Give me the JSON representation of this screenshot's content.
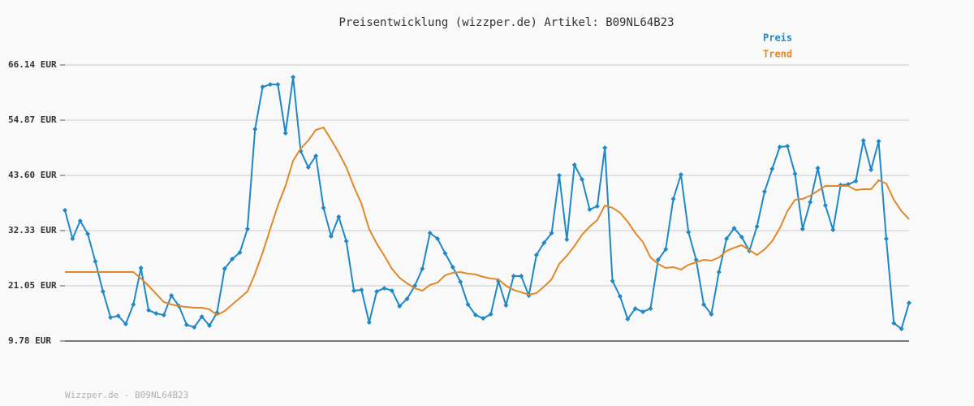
{
  "chart_data": {
    "type": "line",
    "title": "Preisentwicklung (wizzper.de) Artikel: B09NL64B23",
    "footer": "Wizzper.de - B09NL64B23",
    "ylim": [
      9.78,
      66.14
    ],
    "yticks": [
      {
        "value": 9.78,
        "label": "9.78 EUR"
      },
      {
        "value": 21.05,
        "label": "21.05 EUR"
      },
      {
        "value": 32.33,
        "label": "32.33 EUR"
      },
      {
        "value": 43.6,
        "label": "43.60 EUR"
      },
      {
        "value": 54.87,
        "label": "54.87 EUR"
      },
      {
        "value": 66.14,
        "label": "66.14 EUR"
      }
    ],
    "grid": true,
    "legend": "top-right",
    "series": [
      {
        "name": "Preis",
        "color": "#1f88c6",
        "markers": true,
        "values": [
          36.47,
          30.67,
          34.31,
          31.66,
          26.03,
          19.89,
          14.59,
          14.92,
          13.26,
          17.24,
          24.7,
          16.08,
          15.42,
          15.09,
          19.06,
          16.91,
          13.1,
          12.6,
          14.75,
          12.93,
          15.58,
          24.53,
          26.52,
          27.85,
          32.66,
          53.04,
          61.66,
          62.16,
          62.16,
          52.22,
          63.65,
          48.57,
          45.25,
          47.57,
          36.97,
          31.16,
          35.14,
          30.17,
          20.06,
          20.22,
          13.59,
          19.89,
          20.56,
          20.06,
          16.91,
          18.4,
          21.05,
          24.53,
          31.83,
          30.67,
          27.68,
          24.87,
          21.88,
          17.24,
          15.09,
          14.42,
          15.25,
          22.05,
          17.07,
          23.04,
          23.04,
          19.06,
          27.35,
          29.84,
          31.83,
          43.6,
          30.5,
          45.75,
          42.77,
          36.63,
          37.3,
          49.23,
          22.05,
          18.9,
          14.26,
          16.41,
          15.75,
          16.41,
          26.36,
          28.51,
          38.79,
          43.76,
          31.99,
          26.36,
          17.24,
          15.25,
          23.87,
          30.67,
          32.82,
          31.0,
          28.18,
          33.15,
          40.28,
          44.92,
          49.4,
          49.56,
          43.93,
          32.66,
          38.13,
          45.09,
          37.46,
          32.49,
          41.61,
          41.77,
          42.44,
          50.72,
          44.76,
          50.56,
          30.67,
          13.43,
          12.27,
          17.57
        ]
      },
      {
        "name": "Trend",
        "color": "#e0892a",
        "markers": false,
        "values": [
          23.87,
          23.87,
          23.87,
          23.87,
          23.87,
          23.87,
          23.87,
          23.87,
          23.87,
          23.87,
          22.55,
          21.05,
          19.4,
          17.74,
          17.24,
          16.91,
          16.74,
          16.58,
          16.58,
          16.25,
          15.09,
          15.91,
          17.24,
          18.57,
          19.89,
          23.54,
          27.85,
          32.66,
          37.46,
          41.44,
          46.58,
          49.07,
          50.72,
          52.88,
          53.38,
          50.89,
          48.24,
          45.25,
          41.28,
          37.8,
          32.66,
          29.67,
          27.19,
          24.53,
          22.71,
          21.55,
          20.56,
          20.06,
          21.22,
          21.72,
          23.21,
          23.71,
          23.87,
          23.54,
          23.37,
          22.88,
          22.55,
          22.38,
          21.05,
          20.22,
          19.73,
          19.23,
          19.56,
          20.89,
          22.38,
          25.53,
          27.19,
          29.18,
          31.5,
          33.15,
          34.48,
          37.46,
          36.97,
          35.97,
          34.15,
          31.83,
          30.0,
          26.85,
          25.53,
          24.7,
          24.87,
          24.37,
          25.36,
          25.86,
          26.36,
          26.19,
          26.85,
          28.18,
          28.84,
          29.34,
          28.35,
          27.35,
          28.51,
          30.17,
          32.82,
          36.3,
          38.62,
          38.79,
          39.45,
          40.45,
          41.44,
          41.44,
          41.44,
          41.44,
          40.61,
          40.78,
          40.78,
          42.6,
          41.94,
          38.62,
          36.3,
          34.65
        ]
      }
    ]
  }
}
